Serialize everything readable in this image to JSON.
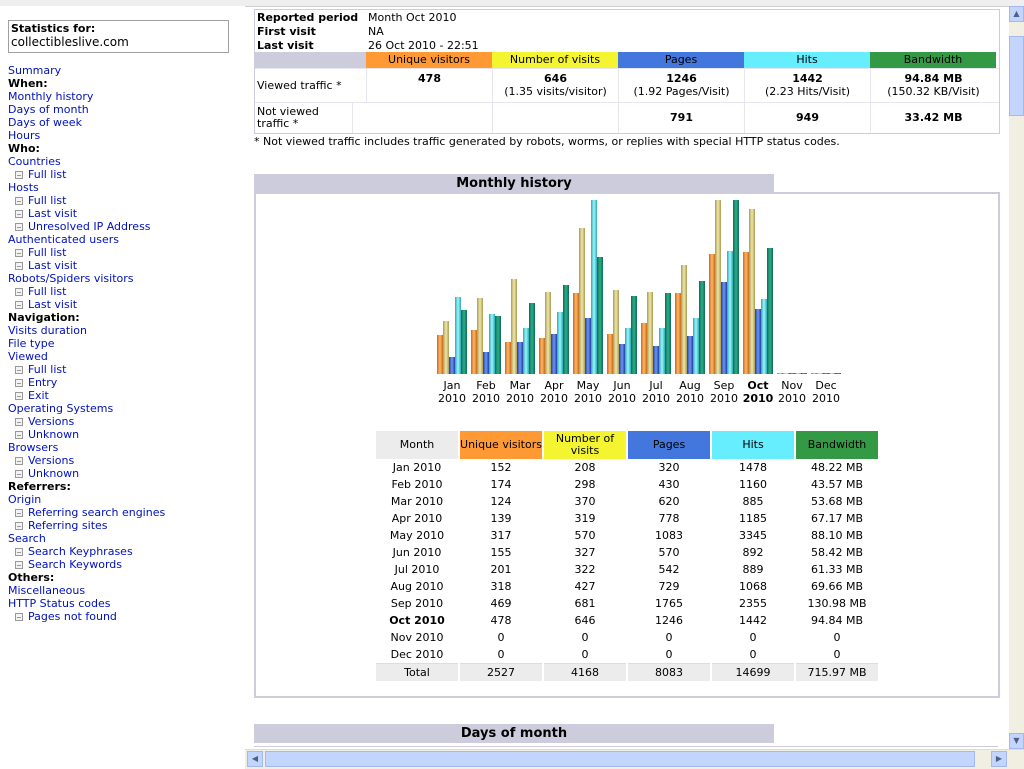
{
  "sidebar": {
    "stats_label": "Statistics for:",
    "site": "collectibleslive.com",
    "menu": [
      {
        "type": "link",
        "label": "Summary",
        "name": "menu-summary"
      },
      {
        "type": "hdr",
        "label": "When:",
        "name": "menu-when-header"
      },
      {
        "type": "link",
        "label": "Monthly history",
        "name": "menu-monthly-history"
      },
      {
        "type": "link",
        "label": "Days of month",
        "name": "menu-days-of-month"
      },
      {
        "type": "link",
        "label": "Days of week",
        "name": "menu-days-of-week"
      },
      {
        "type": "link",
        "label": "Hours",
        "name": "menu-hours"
      },
      {
        "type": "hdr",
        "label": "Who:",
        "name": "menu-who-header"
      },
      {
        "type": "link",
        "label": "Countries",
        "name": "menu-countries"
      },
      {
        "type": "sub",
        "label": "Full list",
        "name": "menu-countries-full-list"
      },
      {
        "type": "link",
        "label": "Hosts",
        "name": "menu-hosts"
      },
      {
        "type": "sub",
        "label": "Full list",
        "name": "menu-hosts-full-list"
      },
      {
        "type": "sub",
        "label": "Last visit",
        "name": "menu-hosts-last-visit"
      },
      {
        "type": "sub",
        "label": "Unresolved IP Address",
        "name": "menu-unresolved-ip"
      },
      {
        "type": "link",
        "label": "Authenticated users",
        "name": "menu-authenticated-users"
      },
      {
        "type": "sub",
        "label": "Full list",
        "name": "menu-auth-full-list"
      },
      {
        "type": "sub",
        "label": "Last visit",
        "name": "menu-auth-last-visit"
      },
      {
        "type": "link",
        "label": "Robots/Spiders visitors",
        "name": "menu-robots"
      },
      {
        "type": "sub",
        "label": "Full list",
        "name": "menu-robots-full-list"
      },
      {
        "type": "sub",
        "label": "Last visit",
        "name": "menu-robots-last-visit"
      },
      {
        "type": "hdr",
        "label": "Navigation:",
        "name": "menu-navigation-header"
      },
      {
        "type": "link",
        "label": "Visits duration",
        "name": "menu-visits-duration"
      },
      {
        "type": "link",
        "label": "File type",
        "name": "menu-file-type"
      },
      {
        "type": "link",
        "label": "Viewed",
        "name": "menu-viewed"
      },
      {
        "type": "sub",
        "label": "Full list",
        "name": "menu-viewed-full-list"
      },
      {
        "type": "sub",
        "label": "Entry",
        "name": "menu-viewed-entry"
      },
      {
        "type": "sub",
        "label": "Exit",
        "name": "menu-viewed-exit"
      },
      {
        "type": "link",
        "label": "Operating Systems",
        "name": "menu-operating-systems"
      },
      {
        "type": "sub",
        "label": "Versions",
        "name": "menu-os-versions"
      },
      {
        "type": "sub",
        "label": "Unknown",
        "name": "menu-os-unknown"
      },
      {
        "type": "link",
        "label": "Browsers",
        "name": "menu-browsers"
      },
      {
        "type": "sub",
        "label": "Versions",
        "name": "menu-browsers-versions"
      },
      {
        "type": "sub",
        "label": "Unknown",
        "name": "menu-browsers-unknown"
      },
      {
        "type": "hdr",
        "label": "Referrers:",
        "name": "menu-referrers-header"
      },
      {
        "type": "link",
        "label": "Origin",
        "name": "menu-origin"
      },
      {
        "type": "sub",
        "label": "Referring search engines",
        "name": "menu-referring-search-engines"
      },
      {
        "type": "sub",
        "label": "Referring sites",
        "name": "menu-referring-sites"
      },
      {
        "type": "link",
        "label": "Search",
        "name": "menu-search"
      },
      {
        "type": "sub",
        "label": "Search Keyphrases",
        "name": "menu-search-keyphrases"
      },
      {
        "type": "sub",
        "label": "Search Keywords",
        "name": "menu-search-keywords"
      },
      {
        "type": "hdr",
        "label": "Others:",
        "name": "menu-others-header"
      },
      {
        "type": "link",
        "label": "Miscellaneous",
        "name": "menu-miscellaneous"
      },
      {
        "type": "link",
        "label": "HTTP Status codes",
        "name": "menu-http-status"
      },
      {
        "type": "sub",
        "label": "Pages not found",
        "name": "menu-pages-not-found"
      }
    ]
  },
  "summary": {
    "reported_period_label": "Reported period",
    "reported_period_value": "Month Oct 2010",
    "first_visit_label": "First visit",
    "first_visit_value": "NA",
    "last_visit_label": "Last visit",
    "last_visit_value": "26 Oct 2010 - 22:51",
    "columns": [
      "Unique visitors",
      "Number of visits",
      "Pages",
      "Hits",
      "Bandwidth"
    ],
    "viewed_label": "Viewed traffic *",
    "viewed": [
      {
        "main": "478",
        "sub": ""
      },
      {
        "main": "646",
        "sub": "(1.35 visits/visitor)"
      },
      {
        "main": "1246",
        "sub": "(1.92 Pages/Visit)"
      },
      {
        "main": "1442",
        "sub": "(2.23 Hits/Visit)"
      },
      {
        "main": "94.84 MB",
        "sub": "(150.32 KB/Visit)"
      }
    ],
    "not_viewed_label": "Not viewed traffic *",
    "not_viewed": [
      "",
      "",
      "791",
      "949",
      "33.42 MB"
    ],
    "note": "* Not viewed traffic includes traffic generated by robots, worms, or replies with special HTTP status codes."
  },
  "colors": {
    "unique": "#FF9933",
    "visits": "#F4F430",
    "pages": "#4477DD",
    "hits": "#66EEFF",
    "bandwidth": "#339944",
    "header_bg": "#CCCCDD",
    "link": "#0011BB"
  },
  "monthly": {
    "title": "Monthly history",
    "headers": [
      "Month",
      "Unique visitors",
      "Number of visits",
      "Pages",
      "Hits",
      "Bandwidth"
    ],
    "rows": [
      {
        "month": "Jan 2010",
        "u": "152",
        "v": "208",
        "p": "320",
        "h": "1478",
        "b": "48.22 MB"
      },
      {
        "month": "Feb 2010",
        "u": "174",
        "v": "298",
        "p": "430",
        "h": "1160",
        "b": "43.57 MB"
      },
      {
        "month": "Mar 2010",
        "u": "124",
        "v": "370",
        "p": "620",
        "h": "885",
        "b": "53.68 MB"
      },
      {
        "month": "Apr 2010",
        "u": "139",
        "v": "319",
        "p": "778",
        "h": "1185",
        "b": "67.17 MB"
      },
      {
        "month": "May 2010",
        "u": "317",
        "v": "570",
        "p": "1083",
        "h": "3345",
        "b": "88.10 MB"
      },
      {
        "month": "Jun 2010",
        "u": "155",
        "v": "327",
        "p": "570",
        "h": "892",
        "b": "58.42 MB"
      },
      {
        "month": "Jul 2010",
        "u": "201",
        "v": "322",
        "p": "542",
        "h": "889",
        "b": "61.33 MB"
      },
      {
        "month": "Aug 2010",
        "u": "318",
        "v": "427",
        "p": "729",
        "h": "1068",
        "b": "69.66 MB"
      },
      {
        "month": "Sep 2010",
        "u": "469",
        "v": "681",
        "p": "1765",
        "h": "2355",
        "b": "130.98 MB"
      },
      {
        "month": "Oct 2010",
        "u": "478",
        "v": "646",
        "p": "1246",
        "h": "1442",
        "b": "94.84 MB",
        "current": true
      },
      {
        "month": "Nov 2010",
        "u": "0",
        "v": "0",
        "p": "0",
        "h": "0",
        "b": "0"
      },
      {
        "month": "Dec 2010",
        "u": "0",
        "v": "0",
        "p": "0",
        "h": "0",
        "b": "0"
      }
    ],
    "total": {
      "month": "Total",
      "u": "2527",
      "v": "4168",
      "p": "8083",
      "h": "14699",
      "b": "715.97 MB"
    }
  },
  "chart_data": {
    "type": "bar",
    "categories": [
      "Jan 2010",
      "Feb 2010",
      "Mar 2010",
      "Apr 2010",
      "May 2010",
      "Jun 2010",
      "Jul 2010",
      "Aug 2010",
      "Sep 2010",
      "Oct 2010",
      "Nov 2010",
      "Dec 2010"
    ],
    "tick_labels_top": [
      "Jan",
      "Feb",
      "Mar",
      "Apr",
      "May",
      "Jun",
      "Jul",
      "Aug",
      "Sep",
      "Oct",
      "Nov",
      "Dec"
    ],
    "tick_labels_bottom": [
      "2010",
      "2010",
      "2010",
      "2010",
      "2010",
      "2010",
      "2010",
      "2010",
      "2010",
      "2010",
      "2010",
      "2010"
    ],
    "highlight_category": "Oct 2010",
    "groups": [
      {
        "axis": "visitors_visits",
        "max": 681,
        "series": [
          {
            "key": "unique",
            "values": [
              152,
              174,
              124,
              139,
              317,
              155,
              201,
              318,
              469,
              478,
              0,
              0
            ]
          },
          {
            "key": "visits",
            "values": [
              208,
              298,
              370,
              319,
              570,
              327,
              322,
              427,
              681,
              646,
              0,
              0
            ]
          }
        ]
      },
      {
        "axis": "pages_hits",
        "max": 3345,
        "series": [
          {
            "key": "pages",
            "values": [
              320,
              430,
              620,
              778,
              1083,
              570,
              542,
              729,
              1765,
              1246,
              0,
              0
            ]
          },
          {
            "key": "hits",
            "values": [
              1478,
              1160,
              885,
              1185,
              3345,
              892,
              889,
              1068,
              2355,
              1442,
              0,
              0
            ]
          }
        ]
      },
      {
        "axis": "bandwidth_mb",
        "max": 130.98,
        "series": [
          {
            "key": "bandwidth",
            "values": [
              48.22,
              43.57,
              53.68,
              67.17,
              88.1,
              58.42,
              61.33,
              69.66,
              130.98,
              94.84,
              0,
              0
            ]
          }
        ]
      }
    ],
    "gradients": {
      "unique": [
        "#C86A1E",
        "#FFB764"
      ],
      "visits": [
        "#A89C55",
        "#F0E6A8"
      ],
      "pages": [
        "#1F3FA8",
        "#6F95EE"
      ],
      "hits": [
        "#2BA9B5",
        "#9FF5FB"
      ],
      "bandwidth": [
        "#0E6B53",
        "#2BB08B"
      ]
    }
  },
  "days_of_month": {
    "title": "Days of month"
  }
}
